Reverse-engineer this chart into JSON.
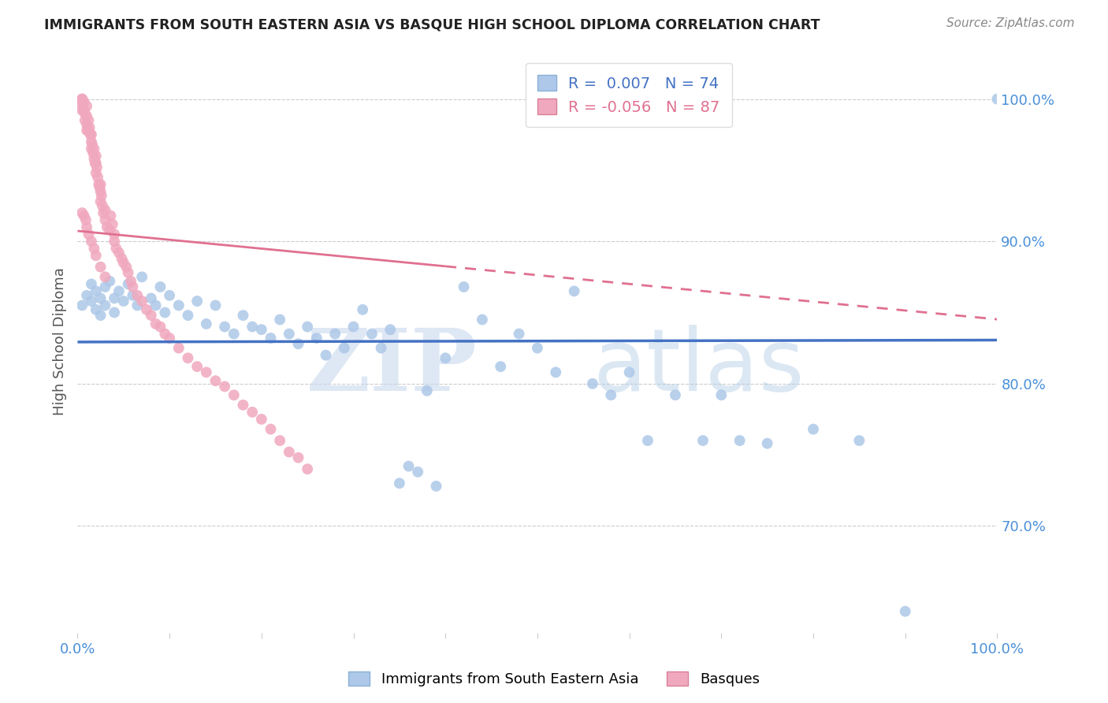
{
  "title": "IMMIGRANTS FROM SOUTH EASTERN ASIA VS BASQUE HIGH SCHOOL DIPLOMA CORRELATION CHART",
  "source": "Source: ZipAtlas.com",
  "ylabel": "High School Diploma",
  "xlim": [
    0.0,
    1.0
  ],
  "ylim": [
    0.625,
    1.035
  ],
  "right_yticks": [
    0.7,
    0.8,
    0.9,
    1.0
  ],
  "right_yticklabels": [
    "70.0%",
    "80.0%",
    "90.0%",
    "100.0%"
  ],
  "blue_R": 0.007,
  "blue_N": 74,
  "pink_R": -0.056,
  "pink_N": 87,
  "blue_color": "#adc8e8",
  "pink_color": "#f0a8be",
  "blue_line_color": "#4472c4",
  "pink_line_color": "#e07090",
  "legend_label_blue": "Immigrants from South Eastern Asia",
  "legend_label_pink": "Basques",
  "watermark_zip": "ZIP",
  "watermark_atlas": "atlas",
  "background_color": "#ffffff",
  "blue_dots_x": [
    0.005,
    0.01,
    0.015,
    0.015,
    0.02,
    0.02,
    0.025,
    0.025,
    0.03,
    0.03,
    0.035,
    0.04,
    0.04,
    0.045,
    0.05,
    0.055,
    0.06,
    0.065,
    0.07,
    0.08,
    0.085,
    0.09,
    0.095,
    0.1,
    0.11,
    0.12,
    0.13,
    0.14,
    0.15,
    0.16,
    0.17,
    0.18,
    0.19,
    0.2,
    0.21,
    0.22,
    0.23,
    0.24,
    0.25,
    0.26,
    0.27,
    0.28,
    0.29,
    0.3,
    0.31,
    0.32,
    0.33,
    0.34,
    0.35,
    0.36,
    0.37,
    0.38,
    0.39,
    0.4,
    0.42,
    0.44,
    0.46,
    0.48,
    0.5,
    0.52,
    0.54,
    0.56,
    0.58,
    0.6,
    0.62,
    0.65,
    0.68,
    0.7,
    0.72,
    0.75,
    0.8,
    0.85,
    0.9,
    1.0
  ],
  "blue_dots_y": [
    0.855,
    0.862,
    0.87,
    0.858,
    0.865,
    0.852,
    0.86,
    0.848,
    0.868,
    0.855,
    0.872,
    0.86,
    0.85,
    0.865,
    0.858,
    0.87,
    0.862,
    0.855,
    0.875,
    0.86,
    0.855,
    0.868,
    0.85,
    0.862,
    0.855,
    0.848,
    0.858,
    0.842,
    0.855,
    0.84,
    0.835,
    0.848,
    0.84,
    0.838,
    0.832,
    0.845,
    0.835,
    0.828,
    0.84,
    0.832,
    0.82,
    0.835,
    0.825,
    0.84,
    0.852,
    0.835,
    0.825,
    0.838,
    0.73,
    0.742,
    0.738,
    0.795,
    0.728,
    0.818,
    0.868,
    0.845,
    0.812,
    0.835,
    0.825,
    0.808,
    0.865,
    0.8,
    0.792,
    0.808,
    0.76,
    0.792,
    0.76,
    0.792,
    0.76,
    0.758,
    0.768,
    0.76,
    0.64,
    1.0
  ],
  "pink_dots_x": [
    0.005,
    0.005,
    0.005,
    0.005,
    0.005,
    0.007,
    0.007,
    0.008,
    0.008,
    0.01,
    0.01,
    0.01,
    0.01,
    0.012,
    0.012,
    0.013,
    0.014,
    0.015,
    0.015,
    0.015,
    0.016,
    0.017,
    0.018,
    0.018,
    0.019,
    0.02,
    0.02,
    0.02,
    0.021,
    0.022,
    0.023,
    0.024,
    0.025,
    0.025,
    0.025,
    0.026,
    0.027,
    0.028,
    0.03,
    0.03,
    0.032,
    0.035,
    0.036,
    0.038,
    0.04,
    0.04,
    0.042,
    0.045,
    0.048,
    0.05,
    0.053,
    0.055,
    0.058,
    0.06,
    0.065,
    0.07,
    0.075,
    0.08,
    0.085,
    0.09,
    0.095,
    0.1,
    0.11,
    0.12,
    0.13,
    0.14,
    0.15,
    0.16,
    0.17,
    0.18,
    0.19,
    0.2,
    0.21,
    0.22,
    0.23,
    0.24,
    0.25,
    0.005,
    0.007,
    0.009,
    0.01,
    0.012,
    0.015,
    0.018,
    0.02,
    0.025,
    0.03
  ],
  "pink_dots_y": [
    1.0,
    1.0,
    0.998,
    0.995,
    0.992,
    0.998,
    0.992,
    0.99,
    0.985,
    0.995,
    0.988,
    0.982,
    0.978,
    0.985,
    0.978,
    0.98,
    0.975,
    0.975,
    0.97,
    0.965,
    0.968,
    0.962,
    0.958,
    0.965,
    0.955,
    0.96,
    0.955,
    0.948,
    0.952,
    0.945,
    0.94,
    0.938,
    0.94,
    0.935,
    0.928,
    0.932,
    0.925,
    0.92,
    0.922,
    0.915,
    0.91,
    0.908,
    0.918,
    0.912,
    0.905,
    0.9,
    0.895,
    0.892,
    0.888,
    0.885,
    0.882,
    0.878,
    0.872,
    0.868,
    0.862,
    0.858,
    0.852,
    0.848,
    0.842,
    0.84,
    0.835,
    0.832,
    0.825,
    0.818,
    0.812,
    0.808,
    0.802,
    0.798,
    0.792,
    0.785,
    0.78,
    0.775,
    0.768,
    0.76,
    0.752,
    0.748,
    0.74,
    0.92,
    0.918,
    0.915,
    0.91,
    0.905,
    0.9,
    0.895,
    0.89,
    0.882,
    0.875
  ]
}
